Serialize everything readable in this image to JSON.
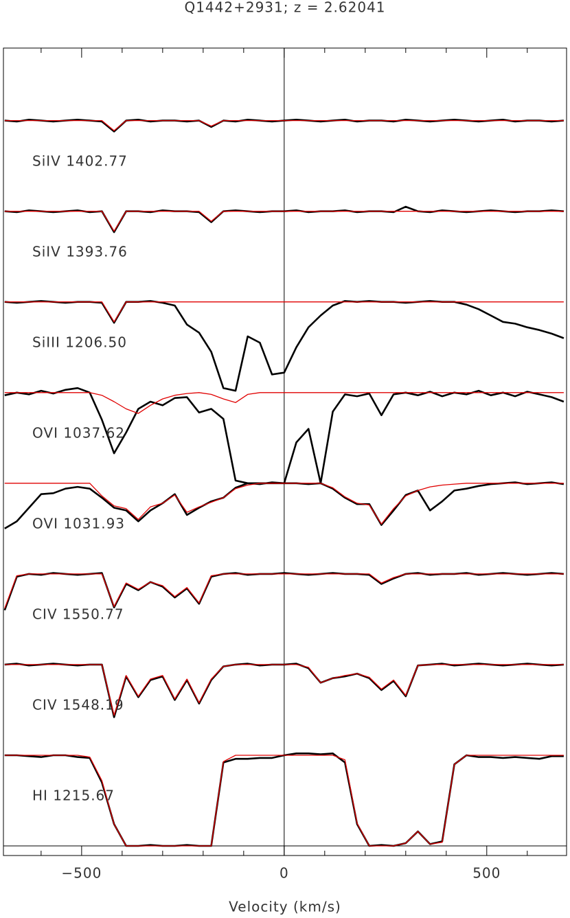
{
  "chart_data": {
    "type": "line",
    "title": "Q1442+2931; z = 2.62041",
    "xlabel": "Velocity (km/s)",
    "xlim": [
      -693,
      697
    ],
    "ylim": [
      -0.106,
      8.8
    ],
    "xticks": [
      {
        "value": -500,
        "label": "−500"
      },
      0,
      500
    ],
    "xminorticks": [
      -600,
      -400,
      -300,
      -200,
      -100,
      100,
      200,
      300,
      400,
      600
    ],
    "vlines": [
      0
    ],
    "hlines": [
      0
    ],
    "x": [
      -690,
      -660,
      -630,
      -600,
      -570,
      -540,
      -510,
      -480,
      -450,
      -420,
      -390,
      -360,
      -330,
      -300,
      -270,
      -240,
      -210,
      -180,
      -150,
      -120,
      -90,
      -60,
      -30,
      0,
      30,
      60,
      90,
      120,
      150,
      180,
      210,
      240,
      270,
      300,
      330,
      360,
      390,
      420,
      450,
      480,
      510,
      540,
      570,
      600,
      630,
      660,
      690
    ],
    "series": [
      {
        "name": "SiIV 1402.77",
        "color": "#000000",
        "values": [
          8.0,
          7.99,
          8.01,
          8.0,
          7.99,
          8.0,
          8.01,
          8.0,
          7.99,
          7.88,
          8.0,
          8.01,
          7.99,
          8.0,
          8.0,
          7.99,
          8.0,
          7.93,
          8.0,
          7.99,
          8.01,
          8.0,
          7.99,
          8.0,
          8.01,
          8.0,
          7.99,
          8.0,
          8.01,
          7.99,
          8.0,
          8.0,
          7.99,
          8.01,
          8.0,
          7.99,
          8.0,
          8.01,
          8.0,
          7.99,
          8.0,
          8.01,
          7.99,
          8.0,
          8.0,
          7.99,
          8.0
        ]
      },
      {
        "name": "SiIV 1393.76",
        "color": "#000000",
        "values": [
          7.0,
          6.99,
          7.01,
          7.0,
          6.99,
          7.0,
          7.01,
          6.99,
          7.0,
          6.77,
          7.0,
          7.0,
          6.99,
          7.01,
          7.0,
          7.0,
          6.99,
          6.88,
          7.0,
          7.01,
          7.0,
          6.99,
          7.0,
          7.0,
          7.01,
          6.99,
          7.0,
          7.0,
          7.01,
          6.99,
          7.0,
          7.0,
          6.99,
          7.05,
          7.0,
          6.99,
          7.01,
          7.0,
          6.99,
          7.0,
          7.01,
          7.0,
          6.99,
          7.0,
          7.0,
          7.01,
          7.0
        ]
      },
      {
        "name": "SiIII 1206.50",
        "color": "#000000",
        "values": [
          6.0,
          5.99,
          6.0,
          6.01,
          6.0,
          5.99,
          6.0,
          6.0,
          5.99,
          5.77,
          6.0,
          6.0,
          6.01,
          5.99,
          5.96,
          5.75,
          5.66,
          5.45,
          5.05,
          5.02,
          5.62,
          5.55,
          5.2,
          5.22,
          5.5,
          5.72,
          5.85,
          5.96,
          6.01,
          6.0,
          6.01,
          6.0,
          6.0,
          5.99,
          6.0,
          6.01,
          6.0,
          6.0,
          5.97,
          5.92,
          5.85,
          5.78,
          5.76,
          5.72,
          5.69,
          5.65,
          5.6
        ]
      },
      {
        "name": "OVI 1037.62",
        "color": "#000000",
        "values": [
          4.97,
          5.0,
          4.98,
          5.02,
          4.99,
          5.03,
          5.05,
          5.0,
          4.7,
          4.33,
          4.56,
          4.82,
          4.9,
          4.86,
          4.94,
          4.95,
          4.78,
          4.82,
          4.71,
          4.03,
          4.0,
          4.0,
          4.0,
          4.0,
          4.45,
          4.6,
          4.0,
          4.79,
          4.98,
          4.96,
          4.99,
          4.75,
          4.98,
          5.0,
          4.97,
          5.01,
          4.96,
          5.0,
          4.98,
          5.02,
          4.97,
          5.0,
          4.96,
          5.01,
          4.98,
          4.95,
          4.9
        ]
      },
      {
        "name": "OVI 1031.93",
        "color": "#000000",
        "values": [
          3.5,
          3.58,
          3.73,
          3.88,
          3.89,
          3.94,
          3.96,
          3.94,
          3.84,
          3.73,
          3.7,
          3.58,
          3.7,
          3.78,
          3.88,
          3.65,
          3.73,
          3.8,
          3.84,
          3.95,
          4.0,
          3.99,
          4.01,
          4.0,
          4.0,
          3.99,
          4.0,
          3.94,
          3.84,
          3.77,
          3.77,
          3.54,
          3.7,
          3.87,
          3.92,
          3.7,
          3.8,
          3.92,
          3.94,
          3.97,
          3.99,
          4.0,
          4.01,
          3.99,
          4.0,
          4.01,
          3.99
        ]
      },
      {
        "name": "CIV 1550.77",
        "color": "#000000",
        "values": [
          2.6,
          2.97,
          3.0,
          2.99,
          3.01,
          3.0,
          2.99,
          3.0,
          3.01,
          2.63,
          2.89,
          2.82,
          2.91,
          2.86,
          2.74,
          2.84,
          2.67,
          2.97,
          3.0,
          3.01,
          2.99,
          3.0,
          3.0,
          3.01,
          3.0,
          2.99,
          3.0,
          3.01,
          3.0,
          3.0,
          2.99,
          2.89,
          2.95,
          3.0,
          3.01,
          2.99,
          3.0,
          3.0,
          3.01,
          2.99,
          3.0,
          3.01,
          3.0,
          2.99,
          3.0,
          3.01,
          3.0
        ]
      },
      {
        "name": "CIV 1548.19",
        "color": "#000000",
        "values": [
          2.0,
          2.01,
          1.99,
          2.0,
          2.01,
          2.0,
          1.99,
          2.0,
          2.0,
          1.42,
          1.87,
          1.64,
          1.83,
          1.87,
          1.61,
          1.83,
          1.57,
          1.83,
          1.98,
          2.0,
          2.01,
          1.99,
          2.0,
          2.0,
          2.01,
          1.96,
          1.8,
          1.85,
          1.87,
          1.9,
          1.85,
          1.72,
          1.82,
          1.65,
          1.99,
          2.0,
          2.01,
          1.99,
          2.0,
          2.01,
          2.0,
          1.99,
          2.0,
          2.01,
          2.0,
          1.99,
          2.0
        ]
      },
      {
        "name": "HI 1215.67",
        "color": "#000000",
        "values": [
          1.0,
          1.0,
          0.99,
          0.98,
          1.0,
          1.0,
          0.98,
          0.97,
          0.7,
          0.24,
          0.0,
          0.0,
          0.01,
          0.0,
          0.0,
          0.01,
          0.0,
          0.0,
          0.92,
          0.96,
          0.96,
          0.97,
          0.97,
          1.0,
          1.02,
          1.02,
          1.01,
          1.02,
          0.92,
          0.24,
          0.0,
          0.01,
          0.0,
          0.03,
          0.16,
          0.02,
          0.05,
          0.9,
          1.0,
          0.98,
          0.98,
          0.97,
          0.98,
          0.97,
          0.96,
          0.99,
          0.99
        ]
      }
    ],
    "fits": [
      {
        "color": "#e00000",
        "values": [
          8,
          8,
          8,
          8,
          8,
          8,
          8,
          8,
          8,
          7.89,
          8,
          8,
          8,
          8,
          8,
          8,
          8,
          7.94,
          8,
          8,
          8,
          8,
          8,
          8,
          8,
          8,
          8,
          8,
          8,
          8,
          8,
          8,
          8,
          8,
          8,
          8,
          8,
          8,
          8,
          8,
          8,
          8,
          8,
          8,
          8,
          8,
          8
        ]
      },
      {
        "color": "#e00000",
        "values": [
          7,
          7,
          7,
          7,
          7,
          7,
          7,
          7,
          7,
          6.78,
          7,
          7,
          7,
          7,
          7,
          7,
          7,
          6.89,
          7,
          7,
          7,
          7,
          7,
          7,
          7,
          7,
          7,
          7,
          7,
          7,
          7,
          7,
          7,
          7,
          7,
          7,
          7,
          7,
          7,
          7,
          7,
          7,
          7,
          7,
          7,
          7,
          7
        ]
      },
      {
        "color": "#e00000",
        "values": [
          6,
          6,
          6,
          6,
          6,
          6,
          6,
          6,
          6,
          5.78,
          6,
          6,
          6,
          6,
          6,
          6,
          6,
          6,
          6,
          6,
          6,
          6,
          6,
          6,
          6,
          6,
          6,
          6,
          6,
          6,
          6,
          6,
          6,
          6,
          6,
          6,
          6,
          6,
          6,
          6,
          6,
          6,
          6,
          6,
          6,
          6,
          6
        ]
      },
      {
        "color": "#e00000",
        "values": [
          5,
          5,
          5,
          5,
          5,
          5,
          5,
          5,
          4.97,
          4.9,
          4.82,
          4.77,
          4.86,
          4.93,
          4.97,
          4.99,
          5,
          4.98,
          4.93,
          4.89,
          4.98,
          5,
          5,
          5,
          5,
          5,
          5,
          5,
          5,
          5,
          5,
          5,
          5,
          5,
          5,
          5,
          5,
          5,
          5,
          5,
          5,
          5,
          5,
          5,
          5,
          5,
          5
        ]
      },
      {
        "color": "#e00000",
        "values": [
          4,
          4,
          4,
          4,
          4,
          4,
          4,
          4,
          3.86,
          3.75,
          3.72,
          3.6,
          3.74,
          3.78,
          3.87,
          3.68,
          3.74,
          3.79,
          3.84,
          3.94,
          3.98,
          4,
          4,
          4,
          4,
          4,
          4,
          3.95,
          3.85,
          3.78,
          3.76,
          3.55,
          3.72,
          3.86,
          3.92,
          3.96,
          3.98,
          3.99,
          4,
          4,
          4,
          4,
          4,
          4,
          4,
          4,
          4
        ]
      },
      {
        "color": "#e00000",
        "values": [
          2.62,
          2.98,
          3,
          3,
          3,
          3,
          3,
          3,
          3,
          2.64,
          2.9,
          2.83,
          2.91,
          2.87,
          2.75,
          2.85,
          2.68,
          2.98,
          3,
          3,
          3,
          3,
          3,
          3,
          3,
          3,
          3,
          3,
          3,
          3,
          3,
          2.9,
          2.96,
          3,
          3,
          3,
          3,
          3,
          3,
          3,
          3,
          3,
          3,
          3,
          3,
          3,
          3
        ]
      },
      {
        "color": "#e00000",
        "values": [
          2,
          2,
          2,
          2,
          2,
          2,
          2,
          2,
          2,
          1.44,
          1.88,
          1.65,
          1.84,
          1.88,
          1.62,
          1.84,
          1.58,
          1.84,
          1.98,
          2,
          2,
          2,
          2,
          2,
          2,
          1.97,
          1.8,
          1.85,
          1.88,
          1.9,
          1.86,
          1.73,
          1.83,
          1.66,
          1.99,
          2,
          2,
          2,
          2,
          2,
          2,
          2,
          2,
          2,
          2,
          2,
          2
        ]
      },
      {
        "color": "#e00000",
        "values": [
          1,
          1,
          1,
          1,
          1,
          1,
          1,
          0.98,
          0.72,
          0.24,
          0,
          0,
          0,
          0,
          0,
          0,
          0,
          0,
          0.93,
          1,
          1,
          1,
          1,
          1,
          1,
          1,
          1,
          1,
          0.95,
          0.25,
          0,
          0,
          0,
          0.03,
          0.16,
          0.02,
          0.04,
          0.9,
          1,
          1,
          1,
          1,
          1,
          1,
          1,
          1,
          1
        ]
      }
    ]
  }
}
